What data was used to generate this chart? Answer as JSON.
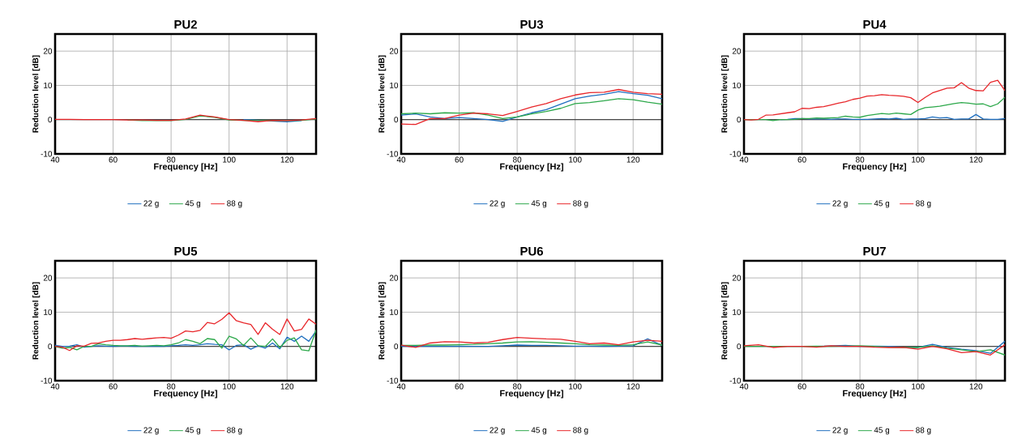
{
  "chart_data": [
    {
      "type": "line",
      "title": "PU2",
      "xlabel": "Frequency [Hz]",
      "ylabel": "Reduction level [dB]",
      "xlim": [
        40,
        130
      ],
      "ylim": [
        -10,
        25
      ],
      "xticks": [
        40,
        60,
        80,
        100,
        120
      ],
      "yticks": [
        -10,
        0,
        10,
        20
      ],
      "grid": true,
      "legend": "bottom",
      "ref_lines": [
        {
          "axis": "y",
          "value": 0,
          "color": "#000000"
        }
      ],
      "x": [
        40,
        45,
        50,
        55,
        60,
        65,
        70,
        75,
        80,
        85,
        90,
        95,
        100,
        105,
        110,
        115,
        120,
        125,
        130
      ],
      "series": [
        {
          "name": "22 g",
          "color": "#1f6fbf",
          "values": [
            null,
            null,
            null,
            null,
            null,
            null,
            null,
            null,
            null,
            null,
            null,
            null,
            null,
            0,
            null,
            null,
            -0.6,
            -0.3,
            null
          ]
        },
        {
          "name": "45 g",
          "color": "#2ca84a",
          "values": [
            null,
            null,
            null,
            null,
            null,
            -0.1,
            -0.3,
            -0.3,
            -0.3,
            0.1,
            1.1,
            0.7,
            -0.1,
            -0.2,
            -0.3,
            -0.2,
            -0.3,
            -0.2,
            0.2
          ]
        },
        {
          "name": "88 g",
          "color": "#e8262a",
          "values": [
            0.1,
            0.1,
            0,
            0,
            0,
            -0.1,
            -0.1,
            -0.2,
            -0.2,
            0.2,
            1.3,
            0.8,
            0,
            -0.2,
            -0.6,
            -0.2,
            -0.3,
            -0.1,
            0.3
          ]
        }
      ]
    },
    {
      "type": "line",
      "title": "PU3",
      "xlabel": "Frequency [Hz]",
      "ylabel": "Reduction level [dB]",
      "xlim": [
        40,
        130
      ],
      "ylim": [
        -10,
        25
      ],
      "xticks": [
        40,
        60,
        80,
        100,
        120
      ],
      "yticks": [
        -10,
        0,
        10,
        20
      ],
      "grid": true,
      "legend": "bottom",
      "ref_lines": [
        {
          "axis": "y",
          "value": 0,
          "color": "#000000"
        }
      ],
      "x": [
        40,
        45,
        50,
        55,
        60,
        65,
        70,
        75,
        80,
        85,
        90,
        95,
        100,
        105,
        110,
        115,
        120,
        125,
        130
      ],
      "series": [
        {
          "name": "22 g",
          "color": "#1f6fbf",
          "values": [
            1.3,
            1.7,
            0.8,
            0.3,
            0.6,
            0.3,
            0,
            -0.5,
            0.8,
            2.0,
            2.9,
            4.5,
            6.1,
            6.9,
            7.4,
            8.2,
            7.6,
            7.1,
            6.1
          ]
        },
        {
          "name": "45 g",
          "color": "#2ca84a",
          "values": [
            1.7,
            1.9,
            1.7,
            2.0,
            1.9,
            2.0,
            1.3,
            0.3,
            0.8,
            1.7,
            2.4,
            3.3,
            4.7,
            5.0,
            5.5,
            6.1,
            5.8,
            5.1,
            4.5
          ]
        },
        {
          "name": "88 g",
          "color": "#e8262a",
          "values": [
            -1.3,
            -1.4,
            0.3,
            0.3,
            1.3,
            1.9,
            1.7,
            1.2,
            2.4,
            3.7,
            4.7,
            6.1,
            7.2,
            7.9,
            8.0,
            8.8,
            8.0,
            7.6,
            7.4
          ]
        }
      ]
    },
    {
      "type": "line",
      "title": "PU4",
      "xlabel": "Frequency [Hz]",
      "ylabel": "Reduction level [dB]",
      "xlim": [
        40,
        130
      ],
      "ylim": [
        -10,
        25
      ],
      "xticks": [
        40,
        60,
        80,
        100,
        120
      ],
      "yticks": [
        -10,
        0,
        10,
        20
      ],
      "grid": true,
      "legend": "bottom",
      "ref_lines": [
        {
          "axis": "y",
          "value": 0,
          "color": "#000000"
        }
      ],
      "x": [
        40,
        42.5,
        45,
        47.5,
        50,
        52.5,
        55,
        57.5,
        60,
        62.5,
        65,
        67.5,
        70,
        72.5,
        75,
        77.5,
        80,
        82.5,
        85,
        87.5,
        90,
        92.5,
        95,
        97.5,
        100,
        102.5,
        105,
        107.5,
        110,
        112.5,
        115,
        117.5,
        120,
        122.5,
        125,
        127.5,
        130
      ],
      "series": [
        {
          "name": "22 g",
          "color": "#1f6fbf",
          "values": [
            null,
            null,
            null,
            null,
            null,
            0,
            0.1,
            0.3,
            0.3,
            0.2,
            0.2,
            0.2,
            0.1,
            0.2,
            0.2,
            0.1,
            0.1,
            0.1,
            0.2,
            0.3,
            0.2,
            0.4,
            0.1,
            0.2,
            0.2,
            0.3,
            0.8,
            0.5,
            0.6,
            0.1,
            0.2,
            0.2,
            1.5,
            0.2,
            0.1,
            0.1,
            0.3
          ]
        },
        {
          "name": "45 g",
          "color": "#2ca84a",
          "values": [
            0,
            0,
            0,
            0,
            -0.3,
            0,
            0,
            0.1,
            0.3,
            0.3,
            0.5,
            0.4,
            0.5,
            0.6,
            1.0,
            0.8,
            0.7,
            1.2,
            1.5,
            1.8,
            1.6,
            1.9,
            1.7,
            1.5,
            2.8,
            3.5,
            3.7,
            3.9,
            4.3,
            4.7,
            5.0,
            4.8,
            4.5,
            4.6,
            3.8,
            4.6,
            6.5
          ]
        },
        {
          "name": "88 g",
          "color": "#e8262a",
          "values": [
            0,
            -0.1,
            0.1,
            1.3,
            1.4,
            1.7,
            2.0,
            2.3,
            3.3,
            3.2,
            3.6,
            3.8,
            4.3,
            4.8,
            5.2,
            5.9,
            6.3,
            6.9,
            7.0,
            7.3,
            7.1,
            7.0,
            6.8,
            6.4,
            5.0,
            6.5,
            7.8,
            8.5,
            9.2,
            9.3,
            10.8,
            9.2,
            8.5,
            8.4,
            10.9,
            11.5,
            8.5
          ]
        }
      ]
    },
    {
      "type": "line",
      "title": "PU5",
      "xlabel": "Frequency [Hz]",
      "ylabel": "Reduction level [dB]",
      "xlim": [
        40,
        130
      ],
      "ylim": [
        -10,
        25
      ],
      "xticks": [
        40,
        60,
        80,
        100,
        120
      ],
      "yticks": [
        -10,
        0,
        10,
        20
      ],
      "grid": true,
      "legend": "bottom",
      "ref_lines": [
        {
          "axis": "y",
          "value": 0,
          "color": "#000000"
        }
      ],
      "x": [
        40,
        42.5,
        45,
        47.5,
        50,
        52.5,
        55,
        57.5,
        60,
        62.5,
        65,
        67.5,
        70,
        72.5,
        75,
        77.5,
        80,
        82.5,
        85,
        87.5,
        90,
        92.5,
        95,
        97.5,
        100,
        102.5,
        105,
        107.5,
        110,
        112.5,
        115,
        117.5,
        120,
        122.5,
        125,
        127.5,
        130
      ],
      "series": [
        {
          "name": "22 g",
          "color": "#1f6fbf",
          "values": [
            0.3,
            0,
            0.1,
            0.5,
            -0.2,
            0,
            0.2,
            0.1,
            0,
            0.1,
            0.1,
            0,
            0.1,
            0,
            0.1,
            0,
            0.2,
            0.3,
            0.5,
            0.3,
            0.5,
            0.8,
            0.6,
            0.5,
            -1.0,
            0.3,
            0.5,
            -0.8,
            0.2,
            -0.5,
            1.0,
            -0.7,
            2.7,
            1.5,
            3.0,
            1.5,
            4.5
          ]
        },
        {
          "name": "45 g",
          "color": "#2ca84a",
          "values": [
            0,
            -0.5,
            -0.3,
            -1.0,
            0,
            0,
            0.8,
            0.5,
            0.3,
            0.2,
            0.2,
            0.3,
            0.1,
            0.2,
            0.3,
            0.2,
            0.5,
            1.0,
            2.0,
            1.5,
            0.8,
            2.3,
            2.0,
            -0.5,
            3.0,
            2.2,
            0.3,
            2.5,
            0.2,
            0,
            2.2,
            -0.3,
            1.8,
            2.5,
            -1.0,
            -1.3,
            4.8
          ]
        },
        {
          "name": "88 g",
          "color": "#e8262a",
          "values": [
            0,
            -0.2,
            -1.2,
            0.2,
            0.1,
            0.9,
            1.0,
            1.5,
            1.8,
            1.8,
            2.0,
            2.3,
            2.1,
            2.3,
            2.5,
            2.6,
            2.4,
            3.3,
            4.5,
            4.3,
            4.7,
            7.0,
            6.6,
            7.9,
            9.8,
            7.5,
            6.9,
            6.4,
            3.5,
            6.9,
            5.0,
            3.5,
            8.0,
            4.5,
            5.0,
            8.0,
            6.5
          ]
        }
      ]
    },
    {
      "type": "line",
      "title": "PU6",
      "xlabel": "Frequency [Hz]",
      "ylabel": "Reduction level [dB]",
      "xlim": [
        40,
        130
      ],
      "ylim": [
        -10,
        25
      ],
      "xticks": [
        40,
        60,
        80,
        100,
        120
      ],
      "yticks": [
        -10,
        0,
        10,
        20
      ],
      "grid": true,
      "legend": "bottom",
      "ref_lines": [
        {
          "axis": "y",
          "value": 0,
          "color": "#000000"
        }
      ],
      "x": [
        40,
        45,
        50,
        55,
        60,
        65,
        70,
        75,
        80,
        85,
        90,
        95,
        100,
        105,
        110,
        115,
        120,
        125,
        130
      ],
      "series": [
        {
          "name": "22 g",
          "color": "#1f6fbf",
          "values": [
            0,
            0,
            0,
            0,
            0.1,
            0,
            0,
            0.2,
            0.4,
            0.3,
            0.3,
            0.2,
            0.1,
            0.1,
            0,
            0.1,
            0.2,
            2.2,
            0.3
          ]
        },
        {
          "name": "45 g",
          "color": "#2ca84a",
          "values": [
            0.3,
            0.3,
            0.4,
            0.4,
            0.5,
            0.6,
            0.8,
            1.0,
            1.3,
            1.4,
            1.2,
            1.0,
            0.8,
            0.5,
            0.4,
            0.3,
            0.5,
            1.3,
            0.4
          ]
        },
        {
          "name": "88 g",
          "color": "#e8262a",
          "values": [
            0.4,
            -0.3,
            1.0,
            1.4,
            1.3,
            1.0,
            1.2,
            2.0,
            2.6,
            2.4,
            2.2,
            2.1,
            1.5,
            0.8,
            1.0,
            0.5,
            1.3,
            1.8,
            1.5
          ]
        }
      ]
    },
    {
      "type": "line",
      "title": "PU7",
      "xlabel": "Frequency [Hz]",
      "ylabel": "Reduction level [dB]",
      "xlim": [
        40,
        130
      ],
      "ylim": [
        -10,
        25
      ],
      "xticks": [
        40,
        60,
        80,
        100,
        120
      ],
      "yticks": [
        -10,
        0,
        10,
        20
      ],
      "grid": true,
      "legend": "bottom",
      "ref_lines": [
        {
          "axis": "y",
          "value": 0,
          "color": "#000000"
        }
      ],
      "x": [
        40,
        45,
        50,
        55,
        60,
        65,
        70,
        75,
        80,
        85,
        90,
        95,
        100,
        105,
        110,
        115,
        120,
        125,
        130
      ],
      "series": [
        {
          "name": "22 g",
          "color": "#1f6fbf",
          "values": [
            null,
            null,
            null,
            null,
            null,
            0,
            null,
            0.3,
            0,
            0.1,
            0,
            -0.2,
            -0.3,
            0.6,
            -0.3,
            -0.8,
            -1.2,
            -2.0,
            1.5
          ]
        },
        {
          "name": "45 g",
          "color": "#2ca84a",
          "values": [
            0,
            0,
            0,
            null,
            0,
            0.1,
            0,
            0.1,
            0.2,
            0,
            -0.2,
            -0.3,
            -0.3,
            0.2,
            -0.5,
            -1.0,
            -1.5,
            -1.0,
            -2.5
          ]
        },
        {
          "name": "88 g",
          "color": "#e8262a",
          "values": [
            0.2,
            0.5,
            -0.3,
            0,
            0,
            -0.2,
            0.2,
            0,
            0,
            -0.2,
            -0.3,
            -0.3,
            -0.8,
            0,
            -0.7,
            -1.8,
            -1.5,
            -2.5,
            0.5
          ]
        }
      ]
    }
  ]
}
